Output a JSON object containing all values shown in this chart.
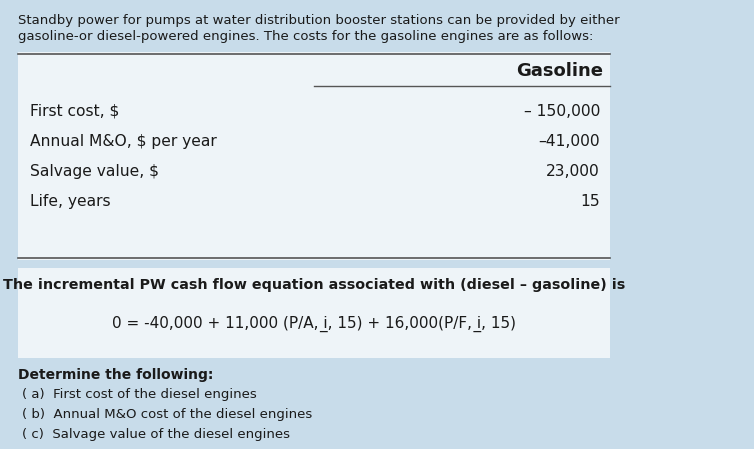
{
  "background_color": "#c8dcea",
  "intro_text_line1": "Standby power for pumps at water distribution booster stations can be provided by either",
  "intro_text_line2": "gasoline-or diesel-powered engines. The costs for the gasoline engines are as follows:",
  "table_header": "Gasoline",
  "table_rows": [
    [
      "First cost, $",
      "– 150,000"
    ],
    [
      "Annual M&O, $ per year",
      "–41,000"
    ],
    [
      "Salvage value, $",
      "23,000"
    ],
    [
      "Life, years",
      "15"
    ]
  ],
  "equation_header": "The incremental PW cash flow equation associated with (diesel – gasoline) is",
  "equation_body": "0 = -40,000 + 11,000 (P/A, i, 15) + 16,000(P/F, i, 15)",
  "determine_label": "Determine the following:",
  "items": [
    "( a)  First cost of the diesel engines",
    "( b)  Annual M&O cost of the diesel engines",
    "( c)  Salvage value of the diesel engines"
  ],
  "table_bg": "#eef4f8",
  "equation_bg": "#eef4f8",
  "text_color": "#1a1a1a",
  "intro_fontsize": 9.5,
  "header_fontsize": 13,
  "row_fontsize": 11.2,
  "eq_header_fontsize": 10.3,
  "eq_body_fontsize": 11,
  "determine_fontsize": 10,
  "items_fontsize": 9.5
}
